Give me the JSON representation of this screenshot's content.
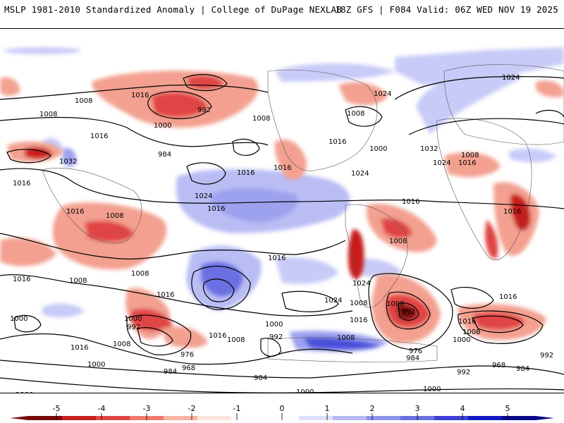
{
  "header": {
    "left_title": "MSLP 1981-2010 Standardized Anomaly | College of DuPage NEXLAB",
    "right_title": "18Z GFS | F084 Valid: 06Z WED NOV 19 2025"
  },
  "colorbar": {
    "ticks": [
      "-5",
      "-4",
      "-3",
      "-2",
      "-1",
      "0",
      "1",
      "2",
      "3",
      "4",
      "5"
    ],
    "colors": [
      "#7a0a0a",
      "#c81e1e",
      "#e04545",
      "#ef7a6a",
      "#f7b3a3",
      "#fde6df",
      "#ffffff",
      "#ffffff",
      "#dde0fb",
      "#b5b9f4",
      "#8d92ec",
      "#6a6fe2",
      "#3d3fd6",
      "#1418c4",
      "#0a0a8c"
    ]
  },
  "isobar_labels": [
    "1024",
    "1016",
    "1008",
    "992",
    "1000",
    "984",
    "1016",
    "1008",
    "1016",
    "1024",
    "1032",
    "1016",
    "1016",
    "1008",
    "1016",
    "1024",
    "1016",
    "1024",
    "1016",
    "1008",
    "1016",
    "1008",
    "1032",
    "1024",
    "1016",
    "1008",
    "1000",
    "1016",
    "1016",
    "1024",
    "1016",
    "1008",
    "1016",
    "1008",
    "1008",
    "1016",
    "1000",
    "992",
    "1000",
    "1016",
    "1024",
    "1016",
    "1008",
    "1008",
    "992",
    "976",
    "984",
    "1000",
    "1008",
    "1016",
    "1000",
    "1008",
    "992",
    "976",
    "968",
    "984",
    "1000",
    "1016",
    "992",
    "984",
    "968",
    "984",
    "992",
    "1000",
    "992",
    "1000",
    "1008",
    "1000",
    "1000",
    "1008",
    "1008",
    "1008"
  ]
}
